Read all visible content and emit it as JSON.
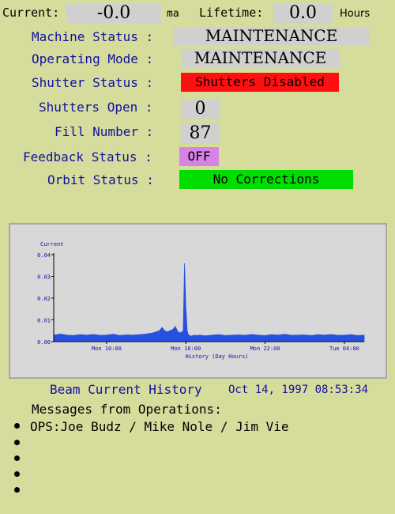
{
  "colors": {
    "background": "#d6dc9c",
    "label_blue": "#1010a0",
    "value_box": "#d0d0d0",
    "shutter_box": "#ff1010",
    "feedback_box": "#d783e6",
    "orbit_box": "#00dd00",
    "chart_fill": "#2850e0",
    "chart_bg": "#d8d8d8"
  },
  "header": {
    "current_label": "Current:",
    "current_value": "-0.0",
    "current_unit": "ma",
    "lifetime_label": "Lifetime:",
    "lifetime_value": "0.0",
    "lifetime_unit": "Hours"
  },
  "status": {
    "machine_status_label": "Machine Status :",
    "machine_status_value": "MAINTENANCE",
    "operating_mode_label": "Operating Mode :",
    "operating_mode_value": "MAINTENANCE",
    "shutter_status_label": "Shutter Status :",
    "shutter_status_value": "Shutters Disabled",
    "shutters_open_label": "Shutters Open :",
    "shutters_open_value": "0",
    "fill_number_label": "Fill Number :",
    "fill_number_value": "87",
    "feedback_status_label": "Feedback Status :",
    "feedback_status_value": "OFF",
    "orbit_status_label": "Orbit Status :",
    "orbit_status_value": "No Corrections"
  },
  "history": {
    "title": "Beam Current History",
    "timestamp": "Oct 14, 1997 08:53:34"
  },
  "messages": {
    "heading": "Messages from Operations:",
    "items": [
      "OPS:Joe Budz / Mike Nole / Jim Vie",
      "",
      "",
      "",
      ""
    ]
  },
  "chart_data": {
    "type": "area",
    "ylabel": "Current",
    "xlabel": "History (Day Hours)",
    "y_ticks": [
      "0.00",
      "0.01",
      "0.02",
      "0.03",
      "0.04"
    ],
    "ylim": [
      0,
      0.04
    ],
    "x_tick_labels": [
      "Mon 10:00",
      "Mon 16:00",
      "Mon 22:00",
      "Tue 04:00"
    ],
    "x_ticks_hours": [
      10,
      16,
      22,
      28
    ],
    "xlim_hours": [
      6,
      29.5
    ],
    "series": [
      {
        "x_hours": [
          6.0,
          6.5,
          7.0,
          7.5,
          8.0,
          8.5,
          9.0,
          9.5,
          10.0,
          10.5,
          11.0,
          11.5,
          12.0,
          12.5,
          13.0,
          13.5,
          14.0,
          14.2,
          14.4,
          14.6,
          14.8,
          15.0,
          15.2,
          15.4,
          15.6,
          15.8,
          15.9,
          16.0,
          16.05,
          16.1,
          16.2,
          16.4,
          16.6,
          16.8,
          17.0,
          17.5,
          18.0,
          18.5,
          19.0,
          19.5,
          20.0,
          20.5,
          21.0,
          21.5,
          22.0,
          22.5,
          23.0,
          23.5,
          24.0,
          24.5,
          25.0,
          25.5,
          26.0,
          26.5,
          27.0,
          27.5,
          28.0,
          28.5,
          29.0,
          29.5
        ],
        "values": [
          0.003,
          0.0035,
          0.003,
          0.0028,
          0.0032,
          0.003,
          0.0033,
          0.0029,
          0.003,
          0.0034,
          0.0028,
          0.0031,
          0.003,
          0.0032,
          0.0035,
          0.004,
          0.005,
          0.0065,
          0.005,
          0.0045,
          0.005,
          0.0055,
          0.007,
          0.0045,
          0.004,
          0.005,
          0.036,
          0.016,
          0.011,
          0.005,
          0.003,
          0.0025,
          0.003,
          0.0028,
          0.003,
          0.0027,
          0.003,
          0.0032,
          0.0028,
          0.003,
          0.0031,
          0.0029,
          0.0033,
          0.003,
          0.0028,
          0.0032,
          0.003,
          0.0034,
          0.0029,
          0.003,
          0.0031,
          0.0028,
          0.0032,
          0.003,
          0.0033,
          0.0029,
          0.003,
          0.0032,
          0.0028,
          0.003
        ]
      }
    ],
    "grid": false
  }
}
